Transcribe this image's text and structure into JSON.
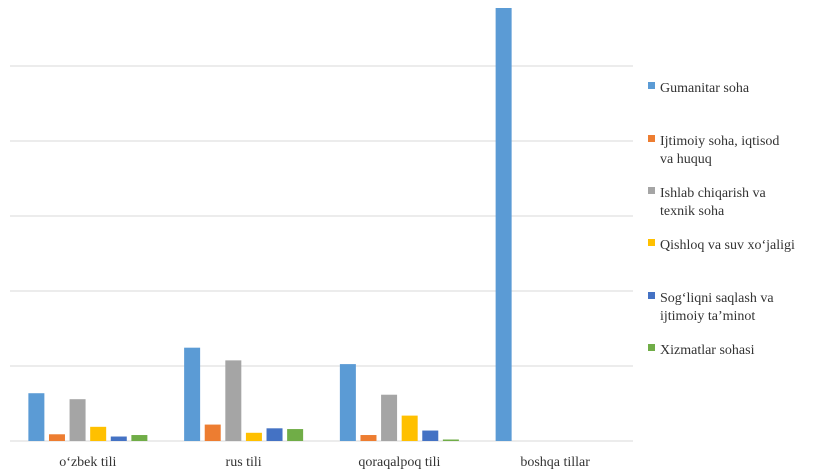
{
  "chart_data": {
    "type": "bar",
    "title": "",
    "xlabel": "",
    "ylabel": "",
    "ylim": [
      0,
      290
    ],
    "grid": true,
    "legend_position": "right",
    "categories": [
      "o‘zbek tili",
      "rus tili",
      "qoraqalpoq tili",
      "boshqa tillar"
    ],
    "series": [
      {
        "name": "Gumanitar soha",
        "color": "#5B9BD5",
        "values": [
          32,
          62.5,
          51.5,
          290
        ]
      },
      {
        "name": "Ijtimoiy soha, iqtisod va huquq",
        "color": "#ED7D31",
        "values": [
          4.5,
          11,
          4,
          0
        ]
      },
      {
        "name": "Ishlab chiqarish va texnik soha",
        "color": "#A5A5A5",
        "values": [
          28,
          54,
          31,
          0
        ]
      },
      {
        "name": "Qishloq va suv xo‘jaligi",
        "color": "#FFC000",
        "values": [
          9.5,
          5.5,
          17,
          0
        ]
      },
      {
        "name": "Sog‘liqni saqlash va ijtimoiy ta’minot",
        "color": "#4472C4",
        "values": [
          3,
          8.5,
          7,
          0
        ]
      },
      {
        "name": "Xizmatlar sohasi",
        "color": "#70AD47",
        "values": [
          4,
          8,
          1,
          0
        ]
      }
    ]
  }
}
